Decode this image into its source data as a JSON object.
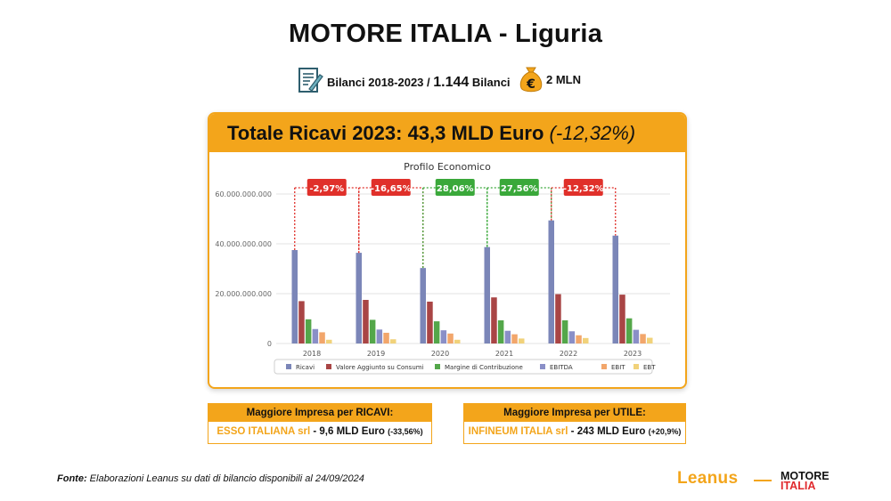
{
  "page": {
    "title": "MOTORE ITALIA - Liguria",
    "subtitle_prefix": "Bilanci 2018-2023 / ",
    "subtitle_count": "1.144",
    "subtitle_suffix": " Bilanci",
    "threshold": "2 MLN",
    "bag_symbol": "€"
  },
  "card": {
    "title_main": "Totale Ricavi 2023: 43,3 MLD Euro",
    "title_pct": "(-12,32%)"
  },
  "chart_data": {
    "type": "bar",
    "title": "Profilo Economico",
    "categories": [
      "2018",
      "2019",
      "2020",
      "2021",
      "2022",
      "2023"
    ],
    "ylim": [
      0,
      60000000000
    ],
    "yticks": [
      0,
      20000000000,
      40000000000,
      60000000000
    ],
    "ytick_labels": [
      "0",
      "20.000.000.000",
      "40.000.000.000",
      "60.000.000.000"
    ],
    "series": [
      {
        "name": "Ricavi",
        "color": "#7b86b8",
        "values": [
          37500000000,
          36400000000,
          30300000000,
          38700000000,
          49400000000,
          43300000000
        ]
      },
      {
        "name": "Valore Aggiunto su Consumi",
        "color": "#a94545",
        "values": [
          17000000000,
          17500000000,
          16800000000,
          18500000000,
          19800000000,
          19600000000
        ]
      },
      {
        "name": "Margine di Contribuzione",
        "color": "#54a74a",
        "values": [
          9700000000,
          9500000000,
          8900000000,
          9300000000,
          9300000000,
          10100000000
        ]
      },
      {
        "name": "EBITDA",
        "color": "#8a8fc7",
        "values": [
          5800000000,
          5600000000,
          5300000000,
          5100000000,
          4900000000,
          5500000000
        ]
      },
      {
        "name": "EBIT",
        "color": "#f2a66b",
        "values": [
          4500000000,
          4300000000,
          4000000000,
          3700000000,
          3300000000,
          3800000000
        ]
      },
      {
        "name": "EBT",
        "color": "#f1d27a",
        "values": [
          1500000000,
          1700000000,
          1500000000,
          2000000000,
          2200000000,
          2300000000
        ]
      }
    ],
    "changes": [
      {
        "label": "-2,97%",
        "positive": false
      },
      {
        "label": "-16,65%",
        "positive": false
      },
      {
        "label": "28,06%",
        "positive": true
      },
      {
        "label": "27,56%",
        "positive": true
      },
      {
        "label": "-12,32%",
        "positive": false
      }
    ],
    "change_colors": {
      "positive": "#3aa83a",
      "negative": "#e0302a"
    }
  },
  "boxes": {
    "ricavi": {
      "header": "Maggiore Impresa per RICAVI:",
      "company": "ESSO ITALIANA srl",
      "sep": " - ",
      "value": "9,6 MLD Euro",
      "pct": "(-33,56%)"
    },
    "utile": {
      "header": "Maggiore Impresa per UTILE:",
      "company": "INFINEUM ITALIA srl",
      "sep": " - ",
      "value": "243 MLD Euro",
      "pct": "(+20,9%)"
    }
  },
  "footer": {
    "fonte_label": "Fonte:",
    "fonte_text": " Elaborazioni Leanus su dati di bilancio disponibili al 24/09/2024",
    "leanus": "Leanus",
    "logo_line1": "MOTORE",
    "logo_line2": "ITALIA"
  }
}
